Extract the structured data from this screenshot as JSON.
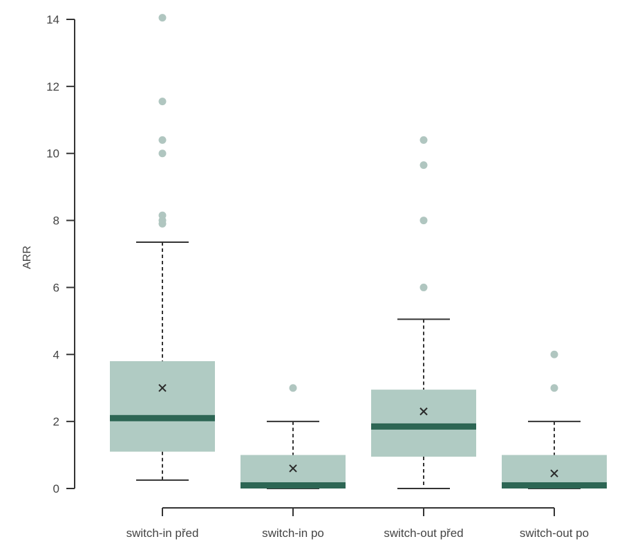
{
  "chart_data": {
    "type": "boxplot",
    "title": "",
    "xlabel": "",
    "ylabel": "ARR",
    "ylim": [
      0,
      14
    ],
    "yticks": [
      0,
      2,
      4,
      6,
      8,
      10,
      12,
      14
    ],
    "grid": false,
    "legend": "none",
    "colors": {
      "box": "#b0cbc3",
      "median": "#2d6654",
      "outlier": "#b0c6c0",
      "axis": "#333333",
      "text": "#444444"
    },
    "categories": [
      "switch-in před",
      "switch-in po",
      "switch-out před",
      "switch-out po"
    ],
    "boxes": [
      {
        "whisker_low": 0.25,
        "q1": 1.1,
        "median": 2.1,
        "q3": 3.8,
        "whisker_high": 7.35,
        "mean": 3.0,
        "outliers": [
          7.9,
          8.0,
          8.15,
          10.0,
          10.4,
          11.55,
          14.05
        ]
      },
      {
        "whisker_low": 0,
        "q1": 0,
        "median": 0,
        "q3": 1.0,
        "whisker_high": 2.0,
        "mean": 0.6,
        "outliers": [
          3.0
        ]
      },
      {
        "whisker_low": 0,
        "q1": 0.95,
        "median": 1.85,
        "q3": 2.95,
        "whisker_high": 5.05,
        "mean": 2.3,
        "outliers": [
          6.0,
          8.0,
          9.65,
          10.4
        ]
      },
      {
        "whisker_low": 0,
        "q1": 0,
        "median": 0,
        "q3": 1.0,
        "whisker_high": 2.0,
        "mean": 0.45,
        "outliers": [
          3.0,
          4.0
        ]
      }
    ]
  }
}
